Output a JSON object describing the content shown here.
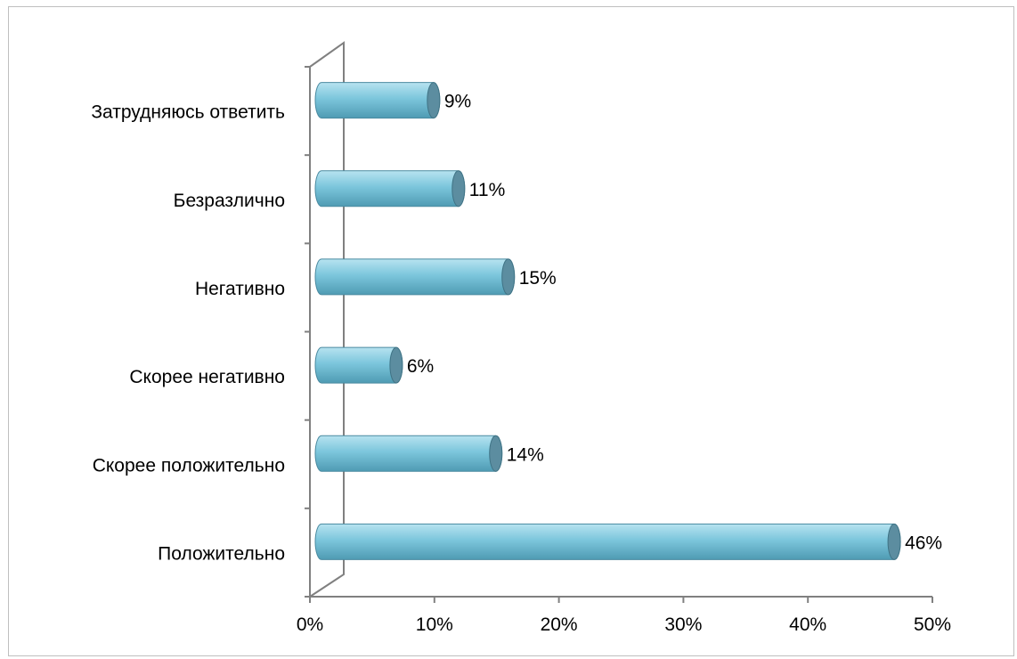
{
  "chart_data": {
    "type": "bar",
    "orientation": "horizontal",
    "style": "3d-cylinder",
    "categories": [
      "Положительно",
      "Скорее положительно",
      "Скорее негативно",
      "Негативно",
      "Безразлично",
      "Затрудняюсь ответить"
    ],
    "values": [
      46,
      14,
      6,
      15,
      11,
      9
    ],
    "data_labels": [
      "46%",
      "14%",
      "6%",
      "15%",
      "11%",
      "9%"
    ],
    "xlim": [
      0,
      50
    ],
    "xticks": [
      "0%",
      "10%",
      "20%",
      "30%",
      "40%",
      "50%"
    ],
    "title": "",
    "xlabel": "",
    "ylabel": "",
    "grid": false,
    "legend": "none",
    "colors": {
      "bar_light": "#b7e3f0",
      "bar_mid": "#7cc6dc",
      "bar_dark": "#4f9bb3",
      "bar_cap": "#5c8da0",
      "axis": "#808080"
    }
  }
}
